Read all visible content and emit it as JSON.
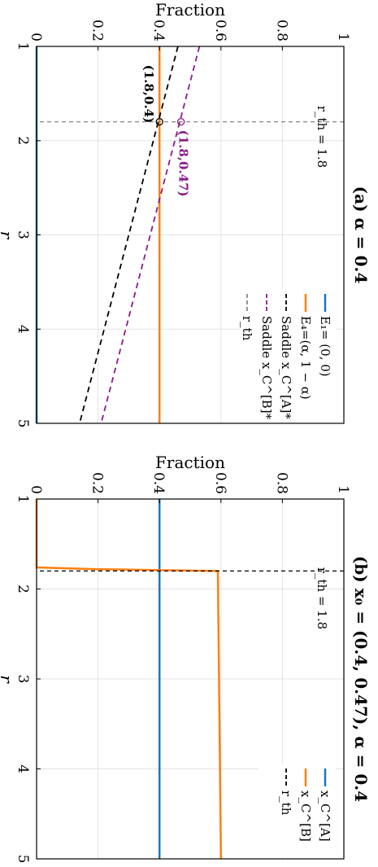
{
  "chart_data": [
    {
      "type": "line",
      "title": "(a) α = 0.4",
      "xlabel": "r",
      "ylabel": "Fraction",
      "xlim": [
        1,
        5
      ],
      "ylim": [
        0,
        1
      ],
      "xticks": [
        "1",
        "2",
        "3",
        "4",
        "5"
      ],
      "yticks": [
        "0",
        "0.2",
        "0.4",
        "0.6",
        "0.8",
        "1"
      ],
      "grid": true,
      "legend_position": "top-right",
      "series": [
        {
          "name": "E₁= (0, 0)",
          "color": "#1f77b4",
          "style": "solid",
          "x": [
            1,
            5
          ],
          "y": [
            0,
            0
          ]
        },
        {
          "name": "E₄=(α, 1 − α)",
          "color": "#ff7f0e",
          "style": "solid",
          "x": [
            1,
            5
          ],
          "y": [
            0.4,
            0.4
          ]
        },
        {
          "name": "Saddle x_C^[A]*",
          "color": "#000000",
          "style": "dashed",
          "x": [
            1,
            5
          ],
          "y": [
            0.46,
            0.14
          ]
        },
        {
          "name": "Saddle x_C^[B]*",
          "color": "#8b1a8b",
          "style": "dashed",
          "x": [
            1,
            5
          ],
          "y": [
            0.53,
            0.21
          ]
        }
      ],
      "threshold": {
        "name": "r_th",
        "x": 1.8,
        "label": "r_th = 1.8",
        "color": "#888888"
      },
      "points": [
        {
          "x": 1.8,
          "y": 0.4,
          "label": "(1.8,0.4)",
          "color": "#000000"
        },
        {
          "x": 1.8,
          "y": 0.47,
          "label": "(1.8,0.47)",
          "color": "#8b1a8b"
        }
      ]
    },
    {
      "type": "line",
      "title": "(b) x₀ = (0.4, 0.47), α = 0.4",
      "xlabel": "r",
      "ylabel": "Fraction",
      "xlim": [
        1,
        5
      ],
      "ylim": [
        0,
        1
      ],
      "xticks": [
        "1",
        "2",
        "3",
        "4",
        "5"
      ],
      "yticks": [
        "0",
        "0.2",
        "0.4",
        "0.6",
        "0.8",
        "1"
      ],
      "grid": true,
      "legend_position": "top-right",
      "series": [
        {
          "name": "x_C^[A]",
          "color": "#1f77b4",
          "style": "solid",
          "x": [
            1,
            5
          ],
          "y": [
            0.4,
            0.4
          ]
        },
        {
          "name": "x_C^[B]",
          "color": "#ff7f0e",
          "style": "solid",
          "x": [
            1,
            1.76,
            1.78,
            1.8,
            5
          ],
          "y": [
            0,
            0,
            0.2,
            0.59,
            0.6
          ]
        }
      ],
      "threshold": {
        "name": "r_th",
        "x": 1.8,
        "label": "r_th = 1.8",
        "color": "#000000"
      }
    }
  ]
}
